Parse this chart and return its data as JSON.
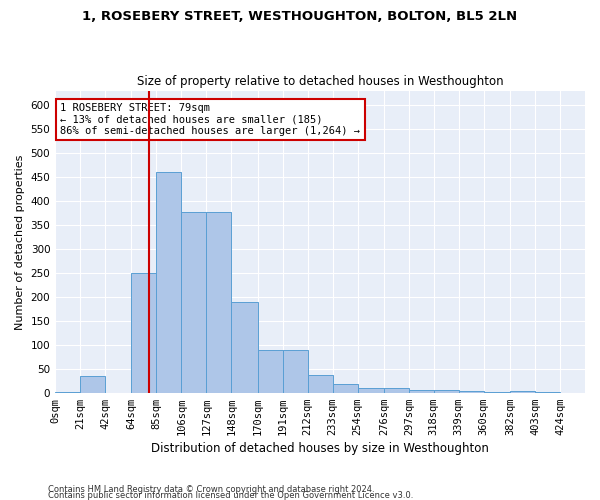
{
  "title1": "1, ROSEBERY STREET, WESTHOUGHTON, BOLTON, BL5 2LN",
  "title2": "Size of property relative to detached houses in Westhoughton",
  "xlabel": "Distribution of detached houses by size in Westhoughton",
  "ylabel": "Number of detached properties",
  "property_size": 79,
  "smaller_pct": 13,
  "smaller_count": 185,
  "larger_pct": 86,
  "larger_count": 1264,
  "bin_labels": [
    "0sqm",
    "21sqm",
    "42sqm",
    "64sqm",
    "85sqm",
    "106sqm",
    "127sqm",
    "148sqm",
    "170sqm",
    "191sqm",
    "212sqm",
    "233sqm",
    "254sqm",
    "276sqm",
    "297sqm",
    "318sqm",
    "339sqm",
    "360sqm",
    "382sqm",
    "403sqm",
    "424sqm"
  ],
  "bin_edges": [
    0,
    21,
    42,
    64,
    85,
    106,
    127,
    148,
    170,
    191,
    212,
    233,
    254,
    276,
    297,
    318,
    339,
    360,
    382,
    403,
    424,
    445
  ],
  "bar_values": [
    2,
    35,
    0,
    250,
    460,
    378,
    378,
    190,
    90,
    90,
    37,
    18,
    10,
    10,
    5,
    5,
    3,
    1,
    3,
    1,
    0
  ],
  "bar_color": "#aec6e8",
  "bar_edge_color": "#5a9fd4",
  "vline_x": 79,
  "vline_color": "#cc0000",
  "annotation_box_color": "#cc0000",
  "ylim": [
    0,
    630
  ],
  "yticks": [
    0,
    50,
    100,
    150,
    200,
    250,
    300,
    350,
    400,
    450,
    500,
    550,
    600
  ],
  "footnote1": "Contains HM Land Registry data © Crown copyright and database right 2024.",
  "footnote2": "Contains public sector information licensed under the Open Government Licence v3.0.",
  "background_color": "#e8eef8",
  "title1_fontsize": 9.5,
  "title2_fontsize": 8.5,
  "ylabel_fontsize": 8.0,
  "xlabel_fontsize": 8.5,
  "tick_fontsize": 7.5,
  "annot_fontsize": 7.5,
  "footnote_fontsize": 6.0
}
